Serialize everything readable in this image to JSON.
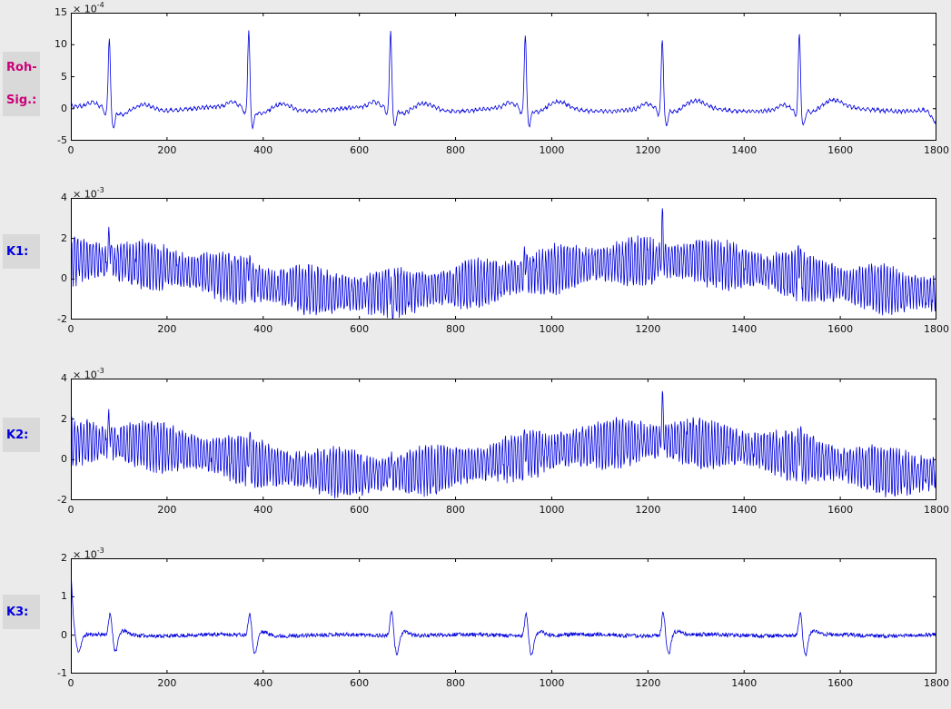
{
  "figure": {
    "background": "#ebebeb",
    "plot_background": "#ffffff",
    "axis_color": "#000000",
    "line_color": "#0000dd",
    "tick_label_color": "#111111",
    "label_box_color": "#d9d9d9"
  },
  "row_labels": [
    {
      "lines": [
        "Roh-",
        "Sig.:"
      ],
      "color": "#cc0077"
    },
    {
      "lines": [
        "K1:"
      ],
      "color": "#0000dd"
    },
    {
      "lines": [
        "K2:"
      ],
      "color": "#0000dd"
    },
    {
      "lines": [
        "K3:"
      ],
      "color": "#0000dd"
    }
  ],
  "chart_data": [
    {
      "type": "line",
      "name": "roh-signal",
      "row_label": "Roh-Sig.:",
      "xlim": [
        0,
        1800
      ],
      "ylim": [
        -5,
        15
      ],
      "x_ticks": [
        0,
        200,
        400,
        600,
        800,
        1000,
        1200,
        1400,
        1600,
        1800
      ],
      "y_ticks": [
        -5,
        0,
        5,
        10,
        15
      ],
      "exponent": {
        "base": "× 10",
        "power": "-4"
      },
      "unit_scale": 0.0001,
      "legend": "none",
      "grid": false,
      "description": "Raw ECG signal: sharp QRS spikes of amplitude 11-12.5 (x1e-4) at x=80,370,665,945,1230,1515 over a noisy baseline near 0 with small P/T bumps and post-spike dips to about -2.5",
      "signal": {
        "kind": "ecg",
        "seed": 7,
        "noise": 0.16,
        "wander_amp": 0.4,
        "wander_period": 310,
        "fine_amp": 0.22,
        "fine_period": 9,
        "beats": [
          80,
          370,
          665,
          945,
          1230,
          1515
        ],
        "r_amps": [
          11.3,
          12.2,
          12.4,
          11.4,
          11.0,
          11.8
        ],
        "p_amp": 0.7,
        "q_amp": 1.2,
        "s_amp": 2.6,
        "st_amp": 0.9,
        "t_amp": 1.0,
        "end_dip": {
          "center": 1796,
          "amp": -1.9,
          "width": 7
        }
      }
    },
    {
      "type": "line",
      "name": "k1",
      "row_label": "K1:",
      "xlim": [
        0,
        1800
      ],
      "ylim": [
        -2,
        4
      ],
      "x_ticks": [
        0,
        200,
        400,
        600,
        800,
        1000,
        1200,
        1400,
        1600,
        1800
      ],
      "y_ticks": [
        -2,
        0,
        2,
        4
      ],
      "exponent": {
        "base": "× 10",
        "power": "-3"
      },
      "unit_scale": 0.001,
      "legend": "none",
      "grid": false,
      "description": "Dense high-frequency oscillation of about +/-1 (x1e-3) riding on a slow sinusoidal drift: center near +0.9 at x=0, minimum near -0.7 around x=600, maximum near +0.9 around x=1200, falling toward -0.7 at x=1800; upward spikes to 2-3 at heartbeat positions",
      "signal": {
        "kind": "oscillation",
        "seed": 3,
        "osc_amp": 1.0,
        "osc_period": 6.4,
        "amp_mod": 0.22,
        "amp_mod_period": 170,
        "noise": 0.12,
        "drift": {
          "offset": 0.1,
          "amp": 0.8,
          "period": 1200,
          "phase_x": 20
        },
        "beats": [
          80,
          370,
          665,
          945,
          1230,
          1515
        ],
        "spike_amps": [
          1.2,
          0.9,
          0.8,
          0.9,
          1.7,
          1.0
        ],
        "down_spikes": [
          {
            "x": 668,
            "amp": 2.0
          }
        ]
      }
    },
    {
      "type": "line",
      "name": "k2",
      "row_label": "K2:",
      "xlim": [
        0,
        1800
      ],
      "ylim": [
        -2,
        4
      ],
      "x_ticks": [
        0,
        200,
        400,
        600,
        800,
        1000,
        1200,
        1400,
        1600,
        1800
      ],
      "y_ticks": [
        -2,
        0,
        2,
        4
      ],
      "exponent": {
        "base": "× 10",
        "power": "-3"
      },
      "unit_scale": 0.001,
      "legend": "none",
      "grid": false,
      "description": "Same character as K1: dense oscillation with slow sinusoidal drift (min near x=600, max near x=1200) and heartbeat spikes, largest spike near x=1230 reaching about 3",
      "signal": {
        "kind": "oscillation",
        "seed": 5,
        "osc_amp": 1.0,
        "osc_period": 6.4,
        "amp_mod": 0.22,
        "amp_mod_period": 190,
        "noise": 0.12,
        "drift": {
          "offset": 0.1,
          "amp": 0.8,
          "period": 1200,
          "phase_x": 20
        },
        "beats": [
          80,
          370,
          665,
          945,
          1230,
          1515
        ],
        "spike_amps": [
          1.1,
          0.9,
          0.8,
          1.0,
          1.8,
          0.9
        ],
        "down_spikes": []
      }
    },
    {
      "type": "line",
      "name": "k3",
      "row_label": "K3:",
      "xlim": [
        0,
        1800
      ],
      "ylim": [
        -1,
        2
      ],
      "x_ticks": [
        0,
        200,
        400,
        600,
        800,
        1000,
        1200,
        1400,
        1600,
        1800
      ],
      "y_ticks": [
        -1,
        0,
        1,
        2
      ],
      "exponent": {
        "base": "× 10",
        "power": "-3"
      },
      "unit_scale": 0.001,
      "legend": "none",
      "grid": false,
      "description": "Nearly flat noisy baseline at 0 with an initial transient decaying from about 1.9 (x1e-3) at x=0 and small biphasic spikes (about +0.6 then -0.5) at heartbeat positions x=82,372,667,947,1232,1517",
      "signal": {
        "kind": "spikes",
        "seed": 11,
        "noise": 0.05,
        "initial": {
          "amp": 1.85,
          "decay": 5,
          "under_amp": 0.5,
          "under_center": 15,
          "under_width": 6
        },
        "beats": [
          82,
          372,
          667,
          947,
          1232,
          1517
        ],
        "up_amps": [
          0.55,
          0.6,
          0.65,
          0.6,
          0.62,
          0.58
        ],
        "down_amps": [
          0.45,
          0.5,
          0.48,
          0.52,
          0.5,
          0.55
        ]
      }
    }
  ]
}
